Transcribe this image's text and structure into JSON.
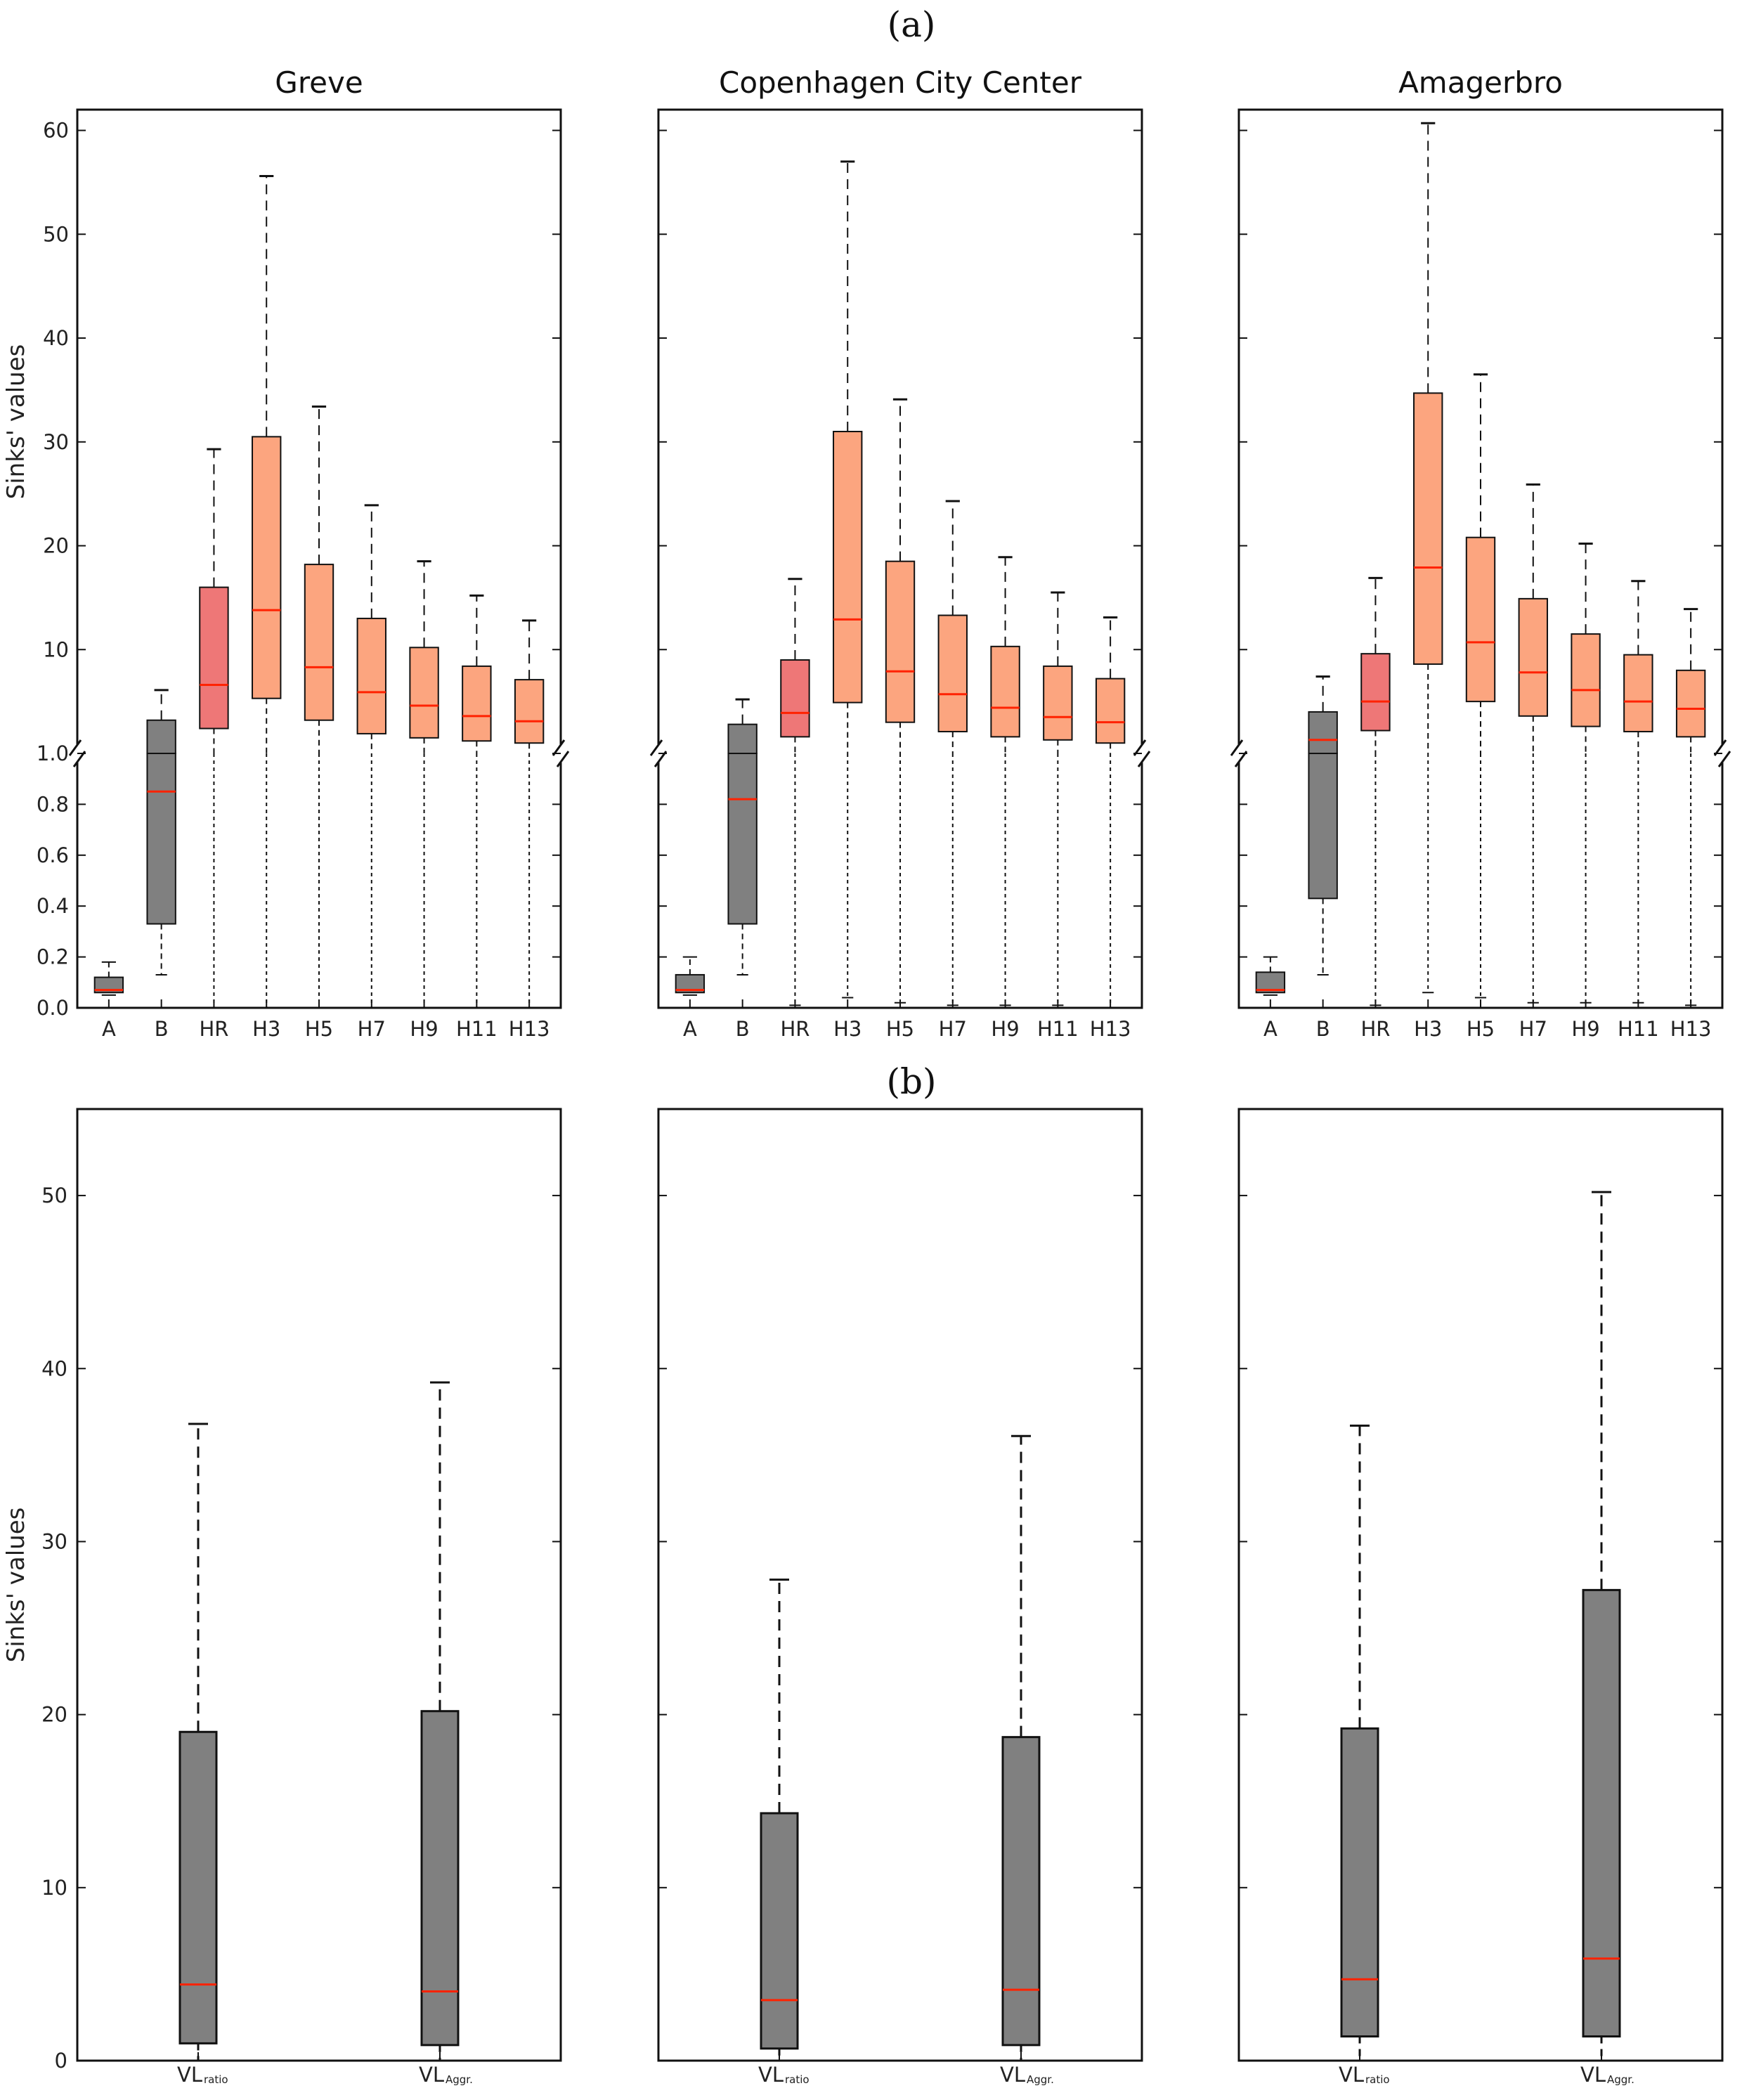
{
  "figure": {
    "panel_a_label": "(a)",
    "panel_b_label": "(b)",
    "y_label": "Sinks' values"
  },
  "colors": {
    "gray_box": "#808080",
    "red_box": "#ee7777",
    "salmon_box": "#fca57f",
    "median": "#ff2200",
    "frame": "#111111"
  },
  "chart_data": [
    {
      "type": "boxplot",
      "panel": "a",
      "title": "Greve",
      "ylabel": "Sinks' values",
      "split_axis": true,
      "ylim_upper": [
        0,
        62
      ],
      "ylim_lower": [
        0,
        1.0
      ],
      "upper_ticks": [
        10,
        20,
        30,
        40,
        50,
        60
      ],
      "lower_ticks": [
        "0.0",
        "0.2",
        "0.4",
        "0.6",
        "0.8",
        "1.0"
      ],
      "show_tick_labels": true,
      "categories": [
        "A",
        "B",
        "HR",
        "H3",
        "H5",
        "H7",
        "H9",
        "H11",
        "H13"
      ],
      "boxes": [
        {
          "label": "A",
          "color": "gray",
          "scale": "lower",
          "whislo": 0.05,
          "q1": 0.06,
          "med": 0.07,
          "q3": 0.12,
          "whishi": 0.18
        },
        {
          "label": "B",
          "color": "gray",
          "scale": "mixed",
          "whislo": 0.13,
          "q1": 0.33,
          "med": 0.85,
          "q3": 3.2,
          "whishi": 6.1
        },
        {
          "label": "HR",
          "color": "red",
          "scale": "mixed",
          "whislo": 0.0,
          "q1": 2.4,
          "med": 6.6,
          "q3": 16.0,
          "whishi": 29.3
        },
        {
          "label": "H3",
          "color": "salmon",
          "scale": "mixed",
          "whislo": 0.0,
          "q1": 5.3,
          "med": 13.8,
          "q3": 30.5,
          "whishi": 55.6
        },
        {
          "label": "H5",
          "color": "salmon",
          "scale": "mixed",
          "whislo": 0.0,
          "q1": 3.2,
          "med": 8.3,
          "q3": 18.2,
          "whishi": 33.4
        },
        {
          "label": "H7",
          "color": "salmon",
          "scale": "mixed",
          "whislo": 0.0,
          "q1": 1.9,
          "med": 5.9,
          "q3": 13.0,
          "whishi": 23.9
        },
        {
          "label": "H9",
          "color": "salmon",
          "scale": "mixed",
          "whislo": 0.0,
          "q1": 1.5,
          "med": 4.6,
          "q3": 10.2,
          "whishi": 18.5
        },
        {
          "label": "H11",
          "color": "salmon",
          "scale": "mixed",
          "whislo": 0.0,
          "q1": 1.2,
          "med": 3.6,
          "q3": 8.4,
          "whishi": 15.2
        },
        {
          "label": "H13",
          "color": "salmon",
          "scale": "mixed",
          "whislo": 0.0,
          "q1": 1.0,
          "med": 3.1,
          "q3": 7.1,
          "whishi": 12.8
        }
      ]
    },
    {
      "type": "boxplot",
      "panel": "a",
      "title": "Copenhagen City Center",
      "ylabel": "",
      "split_axis": true,
      "ylim_upper": [
        0,
        62
      ],
      "ylim_lower": [
        0,
        1.0
      ],
      "upper_ticks": [
        10,
        20,
        30,
        40,
        50,
        60
      ],
      "lower_ticks": [
        "0.0",
        "0.2",
        "0.4",
        "0.6",
        "0.8",
        "1.0"
      ],
      "show_tick_labels": false,
      "categories": [
        "A",
        "B",
        "HR",
        "H3",
        "H5",
        "H7",
        "H9",
        "H11",
        "H13"
      ],
      "boxes": [
        {
          "label": "A",
          "color": "gray",
          "scale": "lower",
          "whislo": 0.05,
          "q1": 0.06,
          "med": 0.07,
          "q3": 0.13,
          "whishi": 0.2
        },
        {
          "label": "B",
          "color": "gray",
          "scale": "mixed",
          "whislo": 0.13,
          "q1": 0.33,
          "med": 0.82,
          "q3": 2.8,
          "whishi": 5.2
        },
        {
          "label": "HR",
          "color": "red",
          "scale": "mixed",
          "whislo": 0.01,
          "q1": 1.6,
          "med": 3.9,
          "q3": 9.0,
          "whishi": 16.8
        },
        {
          "label": "H3",
          "color": "salmon",
          "scale": "mixed",
          "whislo": 0.04,
          "q1": 4.9,
          "med": 12.9,
          "q3": 31.0,
          "whishi": 57.0
        },
        {
          "label": "H5",
          "color": "salmon",
          "scale": "mixed",
          "whislo": 0.02,
          "q1": 3.0,
          "med": 7.9,
          "q3": 18.5,
          "whishi": 34.1
        },
        {
          "label": "H7",
          "color": "salmon",
          "scale": "mixed",
          "whislo": 0.01,
          "q1": 2.1,
          "med": 5.7,
          "q3": 13.3,
          "whishi": 24.3
        },
        {
          "label": "H9",
          "color": "salmon",
          "scale": "mixed",
          "whislo": 0.01,
          "q1": 1.6,
          "med": 4.4,
          "q3": 10.3,
          "whishi": 18.9
        },
        {
          "label": "H11",
          "color": "salmon",
          "scale": "mixed",
          "whislo": 0.01,
          "q1": 1.3,
          "med": 3.5,
          "q3": 8.4,
          "whishi": 15.5
        },
        {
          "label": "H13",
          "color": "salmon",
          "scale": "mixed",
          "whislo": 0.0,
          "q1": 1.0,
          "med": 3.0,
          "q3": 7.2,
          "whishi": 13.1
        }
      ]
    },
    {
      "type": "boxplot",
      "panel": "a",
      "title": "Amagerbro",
      "ylabel": "",
      "split_axis": true,
      "ylim_upper": [
        0,
        62
      ],
      "ylim_lower": [
        0,
        1.0
      ],
      "upper_ticks": [
        10,
        20,
        30,
        40,
        50,
        60
      ],
      "lower_ticks": [
        "0.0",
        "0.2",
        "0.4",
        "0.6",
        "0.8",
        "1.0"
      ],
      "show_tick_labels": false,
      "categories": [
        "A",
        "B",
        "HR",
        "H3",
        "H5",
        "H7",
        "H9",
        "H11",
        "H13"
      ],
      "boxes": [
        {
          "label": "A",
          "color": "gray",
          "scale": "lower",
          "whislo": 0.05,
          "q1": 0.06,
          "med": 0.07,
          "q3": 0.14,
          "whishi": 0.2
        },
        {
          "label": "B",
          "color": "gray",
          "scale": "mixed",
          "whislo": 0.13,
          "q1": 0.43,
          "med": 1.3,
          "q3": 4.0,
          "whishi": 7.4
        },
        {
          "label": "HR",
          "color": "red",
          "scale": "mixed",
          "whislo": 0.01,
          "q1": 2.2,
          "med": 5.0,
          "q3": 9.6,
          "whishi": 16.9
        },
        {
          "label": "H3",
          "color": "salmon",
          "scale": "mixed",
          "whislo": 0.06,
          "q1": 8.6,
          "med": 17.9,
          "q3": 34.7,
          "whishi": 60.7
        },
        {
          "label": "H5",
          "color": "salmon",
          "scale": "mixed",
          "whislo": 0.04,
          "q1": 5.0,
          "med": 10.7,
          "q3": 20.8,
          "whishi": 36.5
        },
        {
          "label": "H7",
          "color": "salmon",
          "scale": "mixed",
          "whislo": 0.02,
          "q1": 3.6,
          "med": 7.8,
          "q3": 14.9,
          "whishi": 25.9
        },
        {
          "label": "H9",
          "color": "salmon",
          "scale": "mixed",
          "whislo": 0.02,
          "q1": 2.6,
          "med": 6.1,
          "q3": 11.5,
          "whishi": 20.2
        },
        {
          "label": "H11",
          "color": "salmon",
          "scale": "mixed",
          "whislo": 0.02,
          "q1": 2.1,
          "med": 5.0,
          "q3": 9.5,
          "whishi": 16.6
        },
        {
          "label": "H13",
          "color": "salmon",
          "scale": "mixed",
          "whislo": 0.01,
          "q1": 1.6,
          "med": 4.3,
          "q3": 8.0,
          "whishi": 13.9
        }
      ]
    },
    {
      "type": "boxplot",
      "panel": "b",
      "title": "",
      "ylabel": "Sinks' values",
      "split_axis": false,
      "ylim": [
        0,
        55
      ],
      "ticks": [
        0,
        10,
        20,
        30,
        40,
        50
      ],
      "show_tick_labels": true,
      "categories": [
        "VL",
        "VL"
      ],
      "category_subscripts": [
        "ratio",
        "Aggr."
      ],
      "boxes": [
        {
          "label": "VL",
          "subscript": "ratio",
          "color": "gray",
          "whislo": 0.0,
          "q1": 1.0,
          "med": 4.4,
          "q3": 19.0,
          "whishi": 36.8
        },
        {
          "label": "VL",
          "subscript": "Aggr.",
          "color": "gray",
          "whislo": 0.0,
          "q1": 0.9,
          "med": 4.0,
          "q3": 20.2,
          "whishi": 39.2
        }
      ]
    },
    {
      "type": "boxplot",
      "panel": "b",
      "title": "",
      "ylabel": "",
      "split_axis": false,
      "ylim": [
        0,
        55
      ],
      "ticks": [
        0,
        10,
        20,
        30,
        40,
        50
      ],
      "show_tick_labels": false,
      "categories": [
        "VL",
        "VL"
      ],
      "category_subscripts": [
        "ratio",
        "Aggr."
      ],
      "boxes": [
        {
          "label": "VL",
          "subscript": "ratio",
          "color": "gray",
          "whislo": 0.0,
          "q1": 0.7,
          "med": 3.5,
          "q3": 14.3,
          "whishi": 27.8
        },
        {
          "label": "VL",
          "subscript": "Aggr.",
          "color": "gray",
          "whislo": 0.0,
          "q1": 0.9,
          "med": 4.1,
          "q3": 18.7,
          "whishi": 36.1
        }
      ]
    },
    {
      "type": "boxplot",
      "panel": "b",
      "title": "",
      "ylabel": "",
      "split_axis": false,
      "ylim": [
        0,
        55
      ],
      "ticks": [
        0,
        10,
        20,
        30,
        40,
        50
      ],
      "show_tick_labels": false,
      "categories": [
        "VL",
        "VL"
      ],
      "category_subscripts": [
        "ratio",
        "Aggr."
      ],
      "boxes": [
        {
          "label": "VL",
          "subscript": "ratio",
          "color": "gray",
          "whislo": 0.0,
          "q1": 1.4,
          "med": 4.7,
          "q3": 19.2,
          "whishi": 36.7
        },
        {
          "label": "VL",
          "subscript": "Aggr.",
          "color": "gray",
          "whislo": 0.0,
          "q1": 1.4,
          "med": 5.9,
          "q3": 27.2,
          "whishi": 50.2
        }
      ]
    }
  ]
}
